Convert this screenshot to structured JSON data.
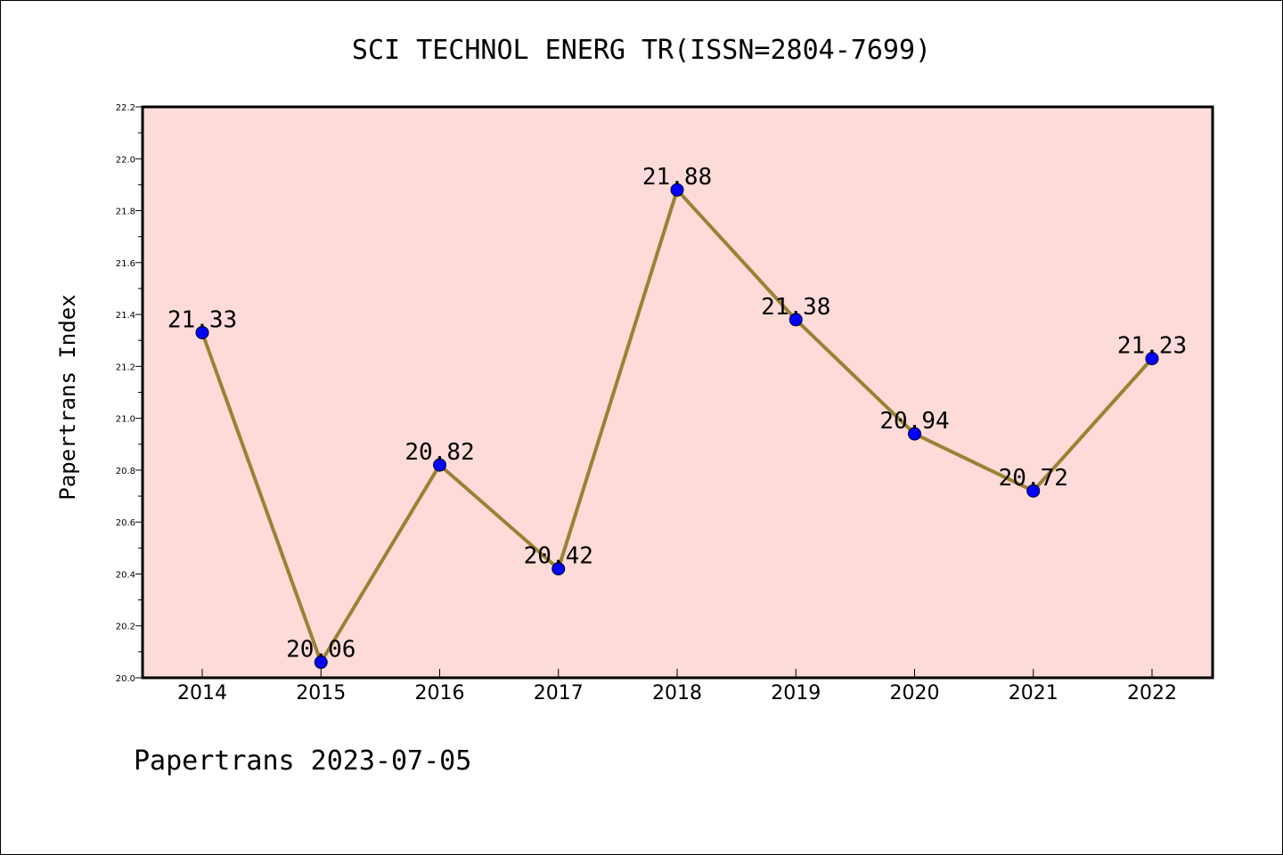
{
  "footer": "Papertrans 2023-07-05",
  "chart_data": {
    "type": "line",
    "title": "SCI TECHNOL ENERG TR(ISSN=2804-7699)",
    "xlabel": "",
    "ylabel": "Papertrans Index",
    "categories": [
      "2014",
      "2015",
      "2016",
      "2017",
      "2018",
      "2019",
      "2020",
      "2021",
      "2022"
    ],
    "series": [
      {
        "values": [
          21.33,
          20.06,
          20.82,
          20.42,
          21.88,
          21.38,
          20.94,
          20.72,
          21.23
        ]
      }
    ],
    "data_labels": [
      "21.33",
      "20.06",
      "20.82",
      "20.42",
      "21.88",
      "21.38",
      "20.94",
      "20.72",
      "21.23"
    ],
    "ylim": [
      20.0,
      22.2
    ],
    "yticks": [
      "20.0",
      "20.2",
      "20.4",
      "20.6",
      "20.8",
      "21.0",
      "21.2",
      "21.4",
      "21.6",
      "21.8",
      "22.0",
      "22.2"
    ],
    "grid": false,
    "colors": {
      "plot_background": "#fddbd8",
      "line": "#9a8235",
      "marker": "#0000ff"
    }
  }
}
